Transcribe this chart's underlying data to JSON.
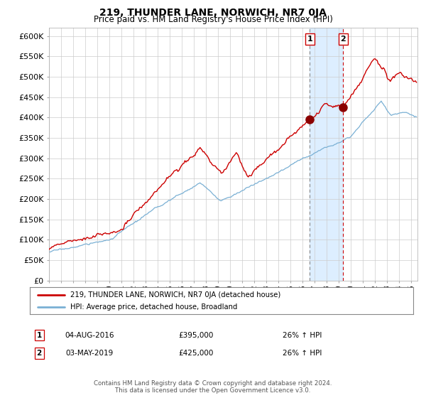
{
  "title": "219, THUNDER LANE, NORWICH, NR7 0JA",
  "subtitle": "Price paid vs. HM Land Registry's House Price Index (HPI)",
  "hpi_label": "HPI: Average price, detached house, Broadland",
  "property_label": "219, THUNDER LANE, NORWICH, NR7 0JA (detached house)",
  "red_line_color": "#cc0000",
  "blue_line_color": "#7ab0d4",
  "bg_color": "#ffffff",
  "grid_color": "#cccccc",
  "sale1_date": "04-AUG-2016",
  "sale1_price": 395000,
  "sale1_hpi": "26%",
  "sale2_date": "03-MAY-2019",
  "sale2_price": 425000,
  "sale2_hpi": "26%",
  "sale1_x": 2016.59,
  "sale2_x": 2019.34,
  "sale1_y": 395000,
  "sale2_y": 425000,
  "ylim_max": 620000,
  "ylim_min": 0,
  "xlim_min": 1995.0,
  "xlim_max": 2025.5,
  "footer1": "Contains HM Land Registry data © Crown copyright and database right 2024.",
  "footer2": "This data is licensed under the Open Government Licence v3.0.",
  "yticks": [
    0,
    50000,
    100000,
    150000,
    200000,
    250000,
    300000,
    350000,
    400000,
    450000,
    500000,
    550000,
    600000
  ],
  "ytick_labels": [
    "£0",
    "£50K",
    "£100K",
    "£150K",
    "£200K",
    "£250K",
    "£300K",
    "£350K",
    "£400K",
    "£450K",
    "£500K",
    "£550K",
    "£600K"
  ],
  "shading_color": "#ddeeff",
  "marker_color": "#8b0000",
  "vline1_color": "#888888",
  "vline2_color": "#cc0000",
  "box_edge_color": "#cc0000",
  "legend_border_color": "#888888",
  "spine_color": "#aaaaaa",
  "footer_color": "#555555"
}
